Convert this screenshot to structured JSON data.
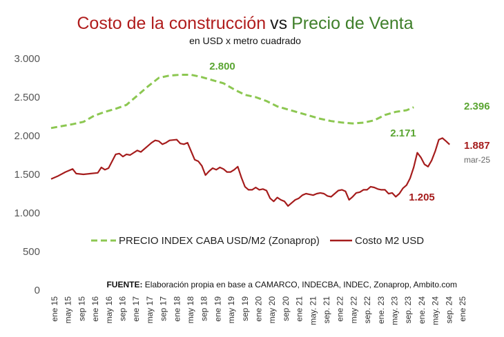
{
  "chart_data": {
    "type": "line",
    "title_parts": [
      "Costo de la construcción",
      "vs",
      "Precio de Venta"
    ],
    "subtitle": "en USD x metro cuadrado",
    "ylim": [
      0,
      3000
    ],
    "y_ticks": [
      0,
      500,
      1000,
      1500,
      2000,
      2500,
      3000
    ],
    "y_tick_labels": [
      "0",
      "500",
      "1.000",
      "1.500",
      "2.000",
      "2.500",
      "3.000"
    ],
    "x_tick_labels": [
      "ene 15",
      "may 15",
      "sep 15",
      "ene 16",
      "may 16",
      "sep 16",
      "ene 17",
      "may 17",
      "sep 17",
      "ene 18",
      "may 18",
      "sep 18",
      "ene 19",
      "may 19",
      "sep 19",
      "ene 20",
      "may 20",
      "sep 20",
      "ene 21",
      "may. 21",
      "sep. 21",
      "ene 22",
      "may 22",
      "sep. 22",
      "ene. 23",
      "may. 23",
      "sep. 23",
      "ene. 24",
      "may. 24",
      "sep. 24",
      "ene 25"
    ],
    "series": [
      {
        "name": "PRECIO INDEX CABA USD/M2 (Zonaprop)",
        "color": "#8cc751",
        "style": "dashed",
        "points": [
          [
            0,
            2100
          ],
          [
            3,
            2125
          ],
          [
            6,
            2150
          ],
          [
            9,
            2180
          ],
          [
            12,
            2260
          ],
          [
            15,
            2310
          ],
          [
            18,
            2350
          ],
          [
            21,
            2400
          ],
          [
            24,
            2520
          ],
          [
            27,
            2640
          ],
          [
            30,
            2750
          ],
          [
            33,
            2780
          ],
          [
            36,
            2790
          ],
          [
            39,
            2790
          ],
          [
            42,
            2760
          ],
          [
            45,
            2720
          ],
          [
            48,
            2680
          ],
          [
            51,
            2600
          ],
          [
            54,
            2530
          ],
          [
            57,
            2500
          ],
          [
            60,
            2450
          ],
          [
            63,
            2380
          ],
          [
            66,
            2340
          ],
          [
            69,
            2300
          ],
          [
            72,
            2260
          ],
          [
            75,
            2220
          ],
          [
            78,
            2190
          ],
          [
            81,
            2171
          ],
          [
            84,
            2160
          ],
          [
            87,
            2170
          ],
          [
            90,
            2200
          ],
          [
            93,
            2270
          ],
          [
            96,
            2310
          ],
          [
            99,
            2330
          ],
          [
            101,
            2370
          ]
        ]
      },
      {
        "name": "Costo M2 USD",
        "color": "#a51c1c",
        "style": "solid",
        "points": [
          [
            0,
            1440
          ],
          [
            2,
            1480
          ],
          [
            4,
            1530
          ],
          [
            6,
            1570
          ],
          [
            7,
            1510
          ],
          [
            9,
            1500
          ],
          [
            11,
            1510
          ],
          [
            13,
            1520
          ],
          [
            14,
            1590
          ],
          [
            15,
            1560
          ],
          [
            16,
            1580
          ],
          [
            18,
            1760
          ],
          [
            19,
            1770
          ],
          [
            20,
            1730
          ],
          [
            21,
            1760
          ],
          [
            22,
            1750
          ],
          [
            24,
            1810
          ],
          [
            25,
            1790
          ],
          [
            27,
            1870
          ],
          [
            28,
            1910
          ],
          [
            29,
            1940
          ],
          [
            30,
            1930
          ],
          [
            31,
            1890
          ],
          [
            32,
            1910
          ],
          [
            33,
            1940
          ],
          [
            35,
            1950
          ],
          [
            36,
            1900
          ],
          [
            37,
            1890
          ],
          [
            38,
            1910
          ],
          [
            39,
            1800
          ],
          [
            40,
            1690
          ],
          [
            41,
            1670
          ],
          [
            42,
            1610
          ],
          [
            43,
            1490
          ],
          [
            44,
            1540
          ],
          [
            45,
            1580
          ],
          [
            46,
            1560
          ],
          [
            47,
            1590
          ],
          [
            48,
            1570
          ],
          [
            49,
            1530
          ],
          [
            50,
            1530
          ],
          [
            51,
            1560
          ],
          [
            52,
            1600
          ],
          [
            53,
            1460
          ],
          [
            54,
            1340
          ],
          [
            55,
            1300
          ],
          [
            56,
            1300
          ],
          [
            57,
            1330
          ],
          [
            58,
            1300
          ],
          [
            59,
            1310
          ],
          [
            60,
            1290
          ],
          [
            61,
            1190
          ],
          [
            62,
            1150
          ],
          [
            63,
            1200
          ],
          [
            64,
            1170
          ],
          [
            65,
            1150
          ],
          [
            66,
            1090
          ],
          [
            67,
            1130
          ],
          [
            68,
            1170
          ],
          [
            69,
            1190
          ],
          [
            70,
            1230
          ],
          [
            71,
            1250
          ],
          [
            72,
            1240
          ],
          [
            73,
            1230
          ],
          [
            74,
            1250
          ],
          [
            75,
            1260
          ],
          [
            76,
            1250
          ],
          [
            77,
            1220
          ],
          [
            78,
            1210
          ],
          [
            79,
            1250
          ],
          [
            80,
            1290
          ],
          [
            81,
            1300
          ],
          [
            82,
            1280
          ],
          [
            83,
            1170
          ],
          [
            84,
            1210
          ],
          [
            85,
            1260
          ],
          [
            86,
            1270
          ],
          [
            87,
            1300
          ],
          [
            88,
            1300
          ],
          [
            89,
            1340
          ],
          [
            90,
            1330
          ],
          [
            91,
            1310
          ],
          [
            92,
            1300
          ],
          [
            93,
            1300
          ],
          [
            94,
            1250
          ],
          [
            95,
            1260
          ],
          [
            96,
            1210
          ],
          [
            97,
            1250
          ],
          [
            98,
            1320
          ],
          [
            99,
            1360
          ],
          [
            100,
            1450
          ],
          [
            101,
            1590
          ],
          [
            102,
            1780
          ],
          [
            103,
            1720
          ],
          [
            104,
            1630
          ],
          [
            105,
            1600
          ],
          [
            106,
            1680
          ],
          [
            107,
            1800
          ],
          [
            108,
            1950
          ],
          [
            109,
            1970
          ],
          [
            110,
            1930
          ],
          [
            111,
            1887
          ]
        ]
      }
    ],
    "annotations": [
      {
        "text": "2.800",
        "series": 0
      },
      {
        "text": "2.396",
        "series": 0
      },
      {
        "text": "2.171",
        "series": 0
      },
      {
        "text": "1.887",
        "series": 1
      },
      {
        "text": "1.205",
        "series": 1
      },
      {
        "text": "mar-25",
        "series": -1
      }
    ],
    "legend_position": "bottom",
    "source_label": "FUENTE:",
    "source_text": " Elaboración propia en base a CAMARCO, INDECBA, INDEC, Zonaprop, Ambito.com"
  }
}
